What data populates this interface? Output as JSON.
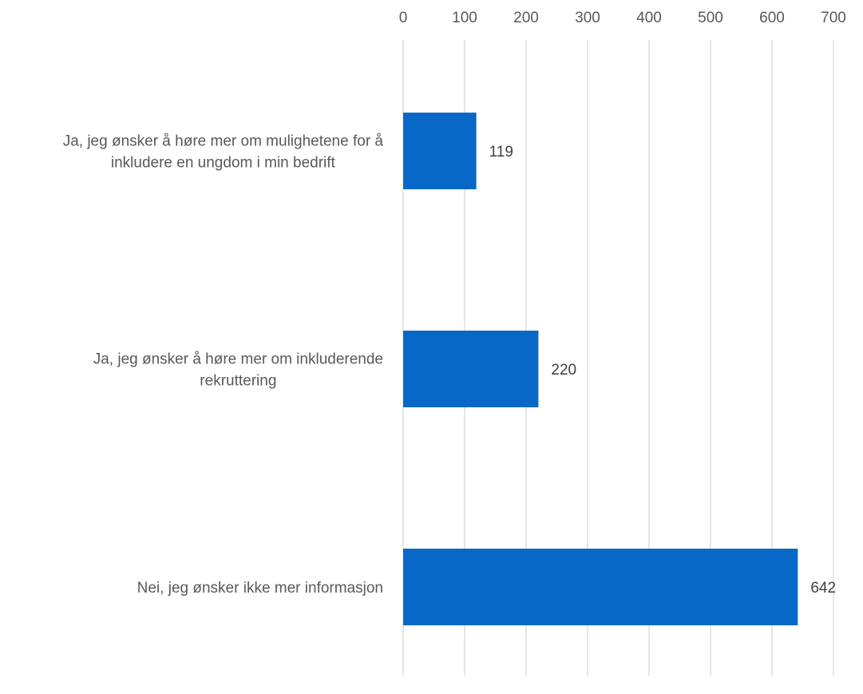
{
  "chart_data": {
    "type": "bar",
    "orientation": "horizontal",
    "categories": [
      "Ja, jeg ønsker å høre mer om mulighetene for å inkludere en ungdom i min bedrift",
      "Ja, jeg ønsker å høre mer om inkluderende rekruttering",
      "Nei, jeg ønsker ikke mer informasjon"
    ],
    "category_lines": [
      [
        "Ja, jeg ønsker å høre mer om mulighetene for å",
        "inkludere en ungdom i min bedrift"
      ],
      [
        "Ja, jeg ønsker å høre mer om inkluderende",
        "rekruttering"
      ],
      [
        "Nei, jeg ønsker ikke mer informasjon"
      ]
    ],
    "values": [
      119,
      220,
      642
    ],
    "data_labels": [
      "119",
      "220",
      "642"
    ],
    "title": "",
    "xlabel": "",
    "ylabel": "",
    "xlim": [
      0,
      700
    ],
    "x_ticks": [
      "0",
      "100",
      "200",
      "300",
      "400",
      "500",
      "600",
      "700"
    ],
    "x_axis_position": "top",
    "grid": true,
    "legend": "none",
    "bar_color": "#0868C8",
    "grid_color": "#d9d9d9"
  }
}
